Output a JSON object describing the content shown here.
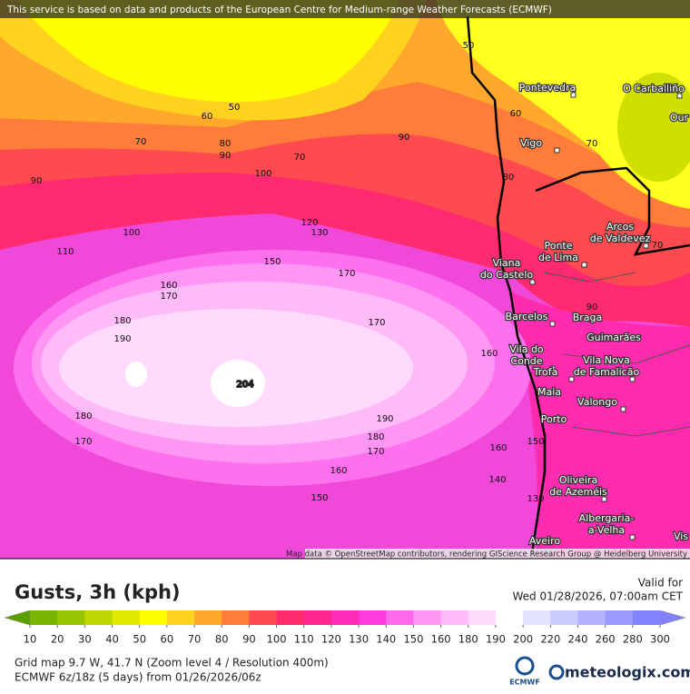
{
  "banner": "This service is based on data and products of the European Centre for Medium-range Weather Forecasts (ECMWF)",
  "attribution": "Map data © OpenStreetMap contributors, rendering GIScience Research Group @ Heidelberg University",
  "title": "Gusts, 3h (kph)",
  "valid_label": "Valid for",
  "valid_time": "Wed 01/28/2026, 07:00am CET",
  "legend": {
    "stops": [
      {
        "value": 10,
        "color": "#5a9e00"
      },
      {
        "value": 20,
        "color": "#78b400"
      },
      {
        "value": 30,
        "color": "#98c600"
      },
      {
        "value": 40,
        "color": "#bcd800"
      },
      {
        "value": 50,
        "color": "#e2ea00"
      },
      {
        "value": 60,
        "color": "#ffff00"
      },
      {
        "value": 70,
        "color": "#ffd21e"
      },
      {
        "value": 80,
        "color": "#ffa82c"
      },
      {
        "value": 90,
        "color": "#ff7c3a"
      },
      {
        "value": 100,
        "color": "#ff4a50"
      },
      {
        "value": 110,
        "color": "#ff2a6c"
      },
      {
        "value": 120,
        "color": "#ff2890"
      },
      {
        "value": 130,
        "color": "#ff2cb8"
      },
      {
        "value": 140,
        "color": "#ff3cdc"
      },
      {
        "value": 150,
        "color": "#ff6aec"
      },
      {
        "value": 160,
        "color": "#ff96f4"
      },
      {
        "value": 180,
        "color": "#ffbaf8"
      },
      {
        "value": 190,
        "color": "#ffdafc"
      },
      {
        "value": 200,
        "color": "#ffffff"
      },
      {
        "value": 220,
        "color": "#e2e2ff"
      },
      {
        "value": 240,
        "color": "#cacaff"
      },
      {
        "value": 260,
        "color": "#b2b2ff"
      },
      {
        "value": 280,
        "color": "#9a9aff"
      },
      {
        "value": 300,
        "color": "#8282ff"
      }
    ]
  },
  "info_lines": [
    "Grid map 9.7 W, 41.7 N (Zoom level 4 / Resolution 400m)",
    "ECMWF 6z/18z (5 days) from 01/26/2026/06z"
  ],
  "logos": [
    "ECMWF",
    "meteologix.com"
  ],
  "places": [
    [
      "Pontevedra"
    ],
    [
      "O Carballiño"
    ],
    [
      "Our"
    ],
    [
      "Vigo"
    ],
    [
      "Arcos",
      "de Valdevez"
    ],
    [
      "Ponte",
      "de Lima"
    ],
    [
      "Viana",
      "do Castelo"
    ],
    [
      "Barcelos"
    ],
    [
      "Braga"
    ],
    [
      "Guimarães"
    ],
    [
      "Vila do",
      "Conde"
    ],
    [
      "Vila Nova",
      "de Famalicão"
    ],
    [
      "Trofa"
    ],
    [
      "Maia"
    ],
    [
      "Valongo"
    ],
    [
      "Porto"
    ],
    [
      "Oliveira",
      "de Azeméis"
    ],
    [
      "Albergaria-",
      "a-Velha"
    ],
    [
      "Aveiro"
    ],
    [
      "Vis"
    ]
  ],
  "contour_labels": [
    50,
    60,
    70,
    50,
    60,
    70,
    80,
    90,
    70,
    90,
    100,
    90,
    100,
    110,
    120,
    130,
    150,
    170,
    160,
    170,
    180,
    170,
    190,
    160,
    204,
    180,
    190,
    180,
    170,
    170,
    160,
    160,
    140,
    150,
    150,
    130,
    90,
    70,
    80
  ]
}
